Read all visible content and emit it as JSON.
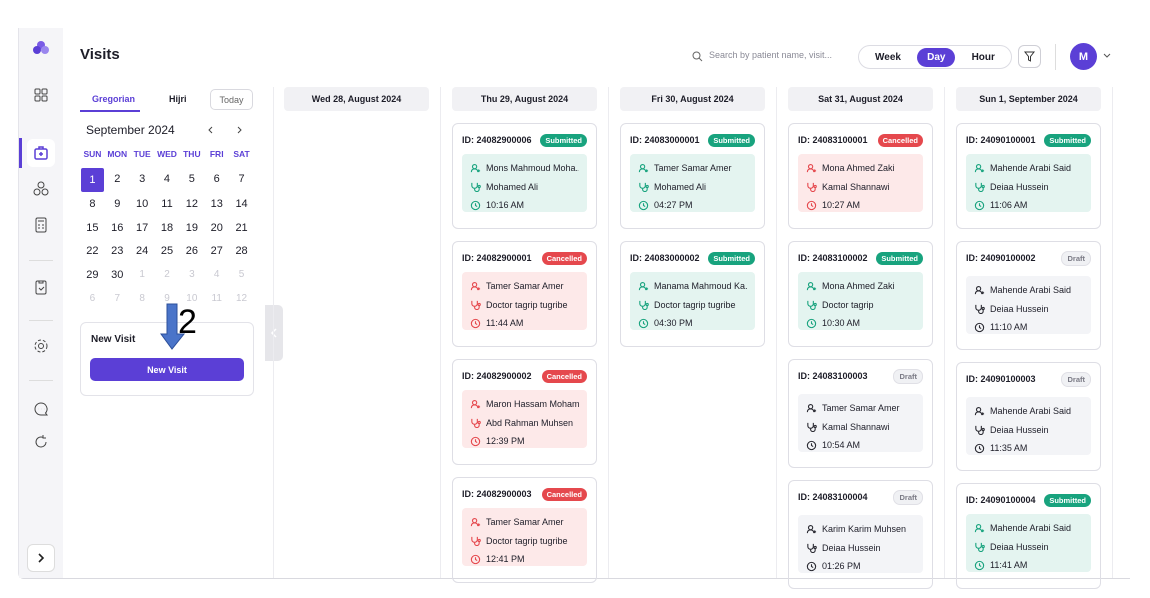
{
  "header": {
    "title": "Visits",
    "search_placeholder": "Search by patient name, visit...",
    "views": [
      "Week",
      "Day",
      "Hour"
    ],
    "avatar": "M"
  },
  "calendar": {
    "tabs": [
      "Gregorian",
      "Hijri"
    ],
    "today": "Today",
    "month": "September 2024",
    "weekdays": [
      "SUN",
      "MON",
      "TUE",
      "WED",
      "THU",
      "FRI",
      "SAT"
    ],
    "days": [
      1,
      2,
      3,
      4,
      5,
      6,
      7,
      8,
      9,
      10,
      11,
      12,
      13,
      14,
      15,
      16,
      17,
      18,
      19,
      20,
      21,
      22,
      23,
      24,
      25,
      26,
      27,
      28,
      29,
      30
    ],
    "next_month_days": [
      1,
      2,
      3,
      4,
      5,
      6,
      7,
      8,
      9,
      10,
      11,
      12
    ]
  },
  "new_visit": {
    "title": "New Visit",
    "button": "New Visit"
  },
  "annotation": {
    "label": "2"
  },
  "columns": [
    {
      "date": "Wed 28, August 2024",
      "cards": []
    },
    {
      "date": "Thu 29, August 2024",
      "cards": [
        {
          "id": "ID: 24082900006",
          "status": "Submitted",
          "patient": "Mons Mahmoud Moha...",
          "doctor": "Mohamed Ali",
          "time": "10:16 AM",
          "accent": "#18a37e",
          "tint": "#e4f4f0",
          "badge": "#18a37e"
        },
        {
          "id": "ID: 24082900001",
          "status": "Cancelled",
          "patient": "Tamer Samar Amer",
          "doctor": "Doctor tagrip tugribe",
          "time": "11:44 AM",
          "accent": "#e5484d",
          "tint": "#fde9e9",
          "badge": "#e5484d"
        },
        {
          "id": "ID: 24082900002",
          "status": "Cancelled",
          "patient": "Maron Hassam Moham...",
          "doctor": "Abd Rahman Muhsen",
          "time": "12:39 PM",
          "accent": "#e5484d",
          "tint": "#fde9e9",
          "badge": "#e5484d"
        },
        {
          "id": "ID: 24082900003",
          "status": "Cancelled",
          "patient": "Tamer Samar Amer",
          "doctor": "Doctor tagrip tugribe",
          "time": "12:41 PM",
          "accent": "#e5484d",
          "tint": "#fde9e9",
          "badge": "#e5484d"
        }
      ]
    },
    {
      "date": "Fri 30, August 2024",
      "cards": [
        {
          "id": "ID: 24083000001",
          "status": "Submitted",
          "patient": "Tamer Samar Amer",
          "doctor": "Mohamed Ali",
          "time": "04:27 PM",
          "accent": "#18a37e",
          "tint": "#e4f4f0",
          "badge": "#18a37e"
        },
        {
          "id": "ID: 24083000002",
          "status": "Submitted",
          "patient": "Manama Mahmoud Ka...",
          "doctor": "Doctor tagrip tugribe",
          "time": "04:30 PM",
          "accent": "#18a37e",
          "tint": "#e4f4f0",
          "badge": "#18a37e"
        }
      ]
    },
    {
      "date": "Sat 31, August 2024",
      "cards": [
        {
          "id": "ID: 24083100001",
          "status": "Cancelled",
          "patient": "Mona Ahmed Zaki",
          "doctor": "Kamal Shannawi",
          "time": "10:27 AM",
          "accent": "#e5484d",
          "tint": "#fde9e9",
          "badge": "#e5484d"
        },
        {
          "id": "ID: 24083100002",
          "status": "Submitted",
          "patient": "Mona Ahmed Zaki",
          "doctor": "Doctor tagrip",
          "time": "10:30 AM",
          "accent": "#18a37e",
          "tint": "#e4f4f0",
          "badge": "#18a37e"
        },
        {
          "id": "ID: 24083100003",
          "status": "Draft",
          "patient": "Tamer Samar Amer",
          "doctor": "Kamal Shannawi",
          "time": "10:54 AM",
          "accent": "#2b2b33",
          "tint": "#f3f4f7",
          "badge": "#f0f1f4"
        },
        {
          "id": "ID: 24083100004",
          "status": "Draft",
          "patient": "Karim Karim Muhsen",
          "doctor": "Deiaa Hussein",
          "time": "01:26 PM",
          "accent": "#2b2b33",
          "tint": "#f3f4f7",
          "badge": "#f0f1f4"
        }
      ]
    },
    {
      "date": "Sun 1, September 2024",
      "cards": [
        {
          "id": "ID: 24090100001",
          "status": "Submitted",
          "patient": "Mahende Arabi Said",
          "doctor": "Deiaa Hussein",
          "time": "11:06 AM",
          "accent": "#18a37e",
          "tint": "#e4f4f0",
          "badge": "#18a37e"
        },
        {
          "id": "ID: 24090100002",
          "status": "Draft",
          "patient": "Mahende Arabi Said",
          "doctor": "Deiaa Hussein",
          "time": "11:10 AM",
          "accent": "#2b2b33",
          "tint": "#f3f4f7",
          "badge": "#f0f1f4"
        },
        {
          "id": "ID: 24090100003",
          "status": "Draft",
          "patient": "Mahende Arabi Said",
          "doctor": "Deiaa Hussein",
          "time": "11:35 AM",
          "accent": "#2b2b33",
          "tint": "#f3f4f7",
          "badge": "#f0f1f4"
        },
        {
          "id": "ID: 24090100004",
          "status": "Submitted",
          "patient": "Mahende Arabi Said",
          "doctor": "Deiaa Hussein",
          "time": "11:41 AM",
          "accent": "#18a37e",
          "tint": "#e4f4f0",
          "badge": "#18a37e"
        }
      ]
    }
  ]
}
